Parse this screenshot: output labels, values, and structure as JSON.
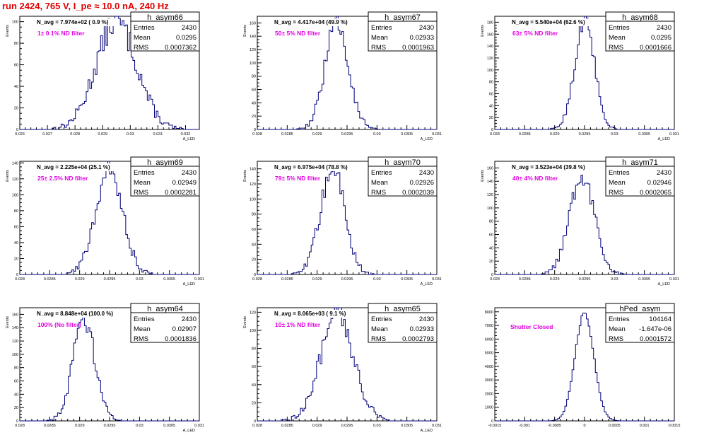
{
  "header": {
    "run_title": "run 2424,   765 V, I_pe ≈ 10.0 nA, 240 Hz"
  },
  "colors": {
    "title": "#e00000",
    "filter_text": "#e000e0",
    "histogram": "#00007a"
  },
  "chart_data": [
    {
      "type": "bar",
      "title": "h_asym66",
      "ylabel": "Events",
      "xlabel": "A_LED",
      "navg": "N_avg = 7.974e+02 ( 0.9 %)",
      "filter": "1± 0.1% ND filter",
      "stats": {
        "Entries": "2430",
        "Mean": "0.0295",
        "RMS": "0.0007362"
      },
      "xlim": [
        0.026,
        0.0325
      ],
      "ylim": [
        0,
        105
      ],
      "xticks": [
        0.026,
        0.027,
        0.028,
        0.029,
        0.03,
        0.031,
        0.032
      ],
      "xticklabels": [
        "0.026",
        "0.027",
        "0.028",
        "0.029",
        "0.03",
        "0.031",
        "0.032"
      ],
      "yticks": [
        0,
        20,
        40,
        60,
        80,
        100
      ],
      "yticklabels": [
        "0",
        "20",
        "40",
        "60",
        "80",
        "100"
      ],
      "mean": 0.0295,
      "rms": 0.0007362,
      "peak": 100,
      "entries": 2430
    },
    {
      "type": "bar",
      "title": "h_asym67",
      "ylabel": "Events",
      "xlabel": "A_LED",
      "navg": "N_avg = 4.417e+04 (49.9 %)",
      "filter": "50± 5% ND filter",
      "stats": {
        "Entries": "2430",
        "Mean": "0.02933",
        "RMS": "0.0001963"
      },
      "xlim": [
        0.028,
        0.031
      ],
      "ylim": [
        0,
        170
      ],
      "xticks": [
        0.028,
        0.0285,
        0.029,
        0.0295,
        0.03,
        0.0305,
        0.031
      ],
      "xticklabels": [
        "0.028",
        "0.0285",
        "0.029",
        "0.0295",
        "0.03",
        "0.0305",
        "0.031"
      ],
      "yticks": [
        0,
        20,
        40,
        60,
        80,
        100,
        120,
        140,
        160
      ],
      "yticklabels": [
        "0",
        "20",
        "40",
        "60",
        "80",
        "100",
        "120",
        "140",
        "160"
      ],
      "mean": 0.02933,
      "rms": 0.0001963,
      "peak": 160,
      "entries": 2430
    },
    {
      "type": "bar",
      "title": "h_asym68",
      "ylabel": "Events",
      "xlabel": "A_LED",
      "navg": "N_avg = 5.540e+04 (62.6 %)",
      "filter": "63± 5% ND filter",
      "stats": {
        "Entries": "2430",
        "Mean": "0.0295",
        "RMS": "0.0001666"
      },
      "xlim": [
        0.028,
        0.031
      ],
      "ylim": [
        0,
        190
      ],
      "xticks": [
        0.028,
        0.0285,
        0.029,
        0.0295,
        0.03,
        0.0305,
        0.031
      ],
      "xticklabels": [
        "0.028",
        "0.0285",
        "0.029",
        "0.0295",
        "0.03",
        "0.0305",
        "0.031"
      ],
      "yticks": [
        0,
        20,
        40,
        60,
        80,
        100,
        120,
        140,
        160,
        180
      ],
      "yticklabels": [
        "0",
        "20",
        "40",
        "60",
        "80",
        "100",
        "120",
        "140",
        "160",
        "180"
      ],
      "mean": 0.0295,
      "rms": 0.0001666,
      "peak": 180,
      "entries": 2430
    },
    {
      "type": "bar",
      "title": "h_asym69",
      "ylabel": "Events",
      "xlabel": "A_LED",
      "navg": "N_avg = 2.225e+04 (25.1 %)",
      "filter": "25± 2.5% ND filter",
      "stats": {
        "Entries": "2430",
        "Mean": "0.02949",
        "RMS": "0.0002281"
      },
      "xlim": [
        0.028,
        0.031
      ],
      "ylim": [
        0,
        142
      ],
      "xticks": [
        0.028,
        0.0285,
        0.029,
        0.0295,
        0.03,
        0.0305,
        0.031
      ],
      "xticklabels": [
        "0.028",
        "0.0285",
        "0.029",
        "0.0295",
        "0.03",
        "0.0305",
        "0.031"
      ],
      "yticks": [
        0,
        20,
        40,
        60,
        80,
        100,
        120,
        140
      ],
      "yticklabels": [
        "0",
        "20",
        "40",
        "60",
        "80",
        "100",
        "120",
        "140"
      ],
      "mean": 0.02949,
      "rms": 0.0002281,
      "peak": 130,
      "entries": 2430
    },
    {
      "type": "bar",
      "title": "h_asym70",
      "ylabel": "Events",
      "xlabel": "A_LED",
      "navg": "N_avg = 6.975e+04 (78.8 %)",
      "filter": "79± 5% ND filter",
      "stats": {
        "Entries": "2430",
        "Mean": "0.02926",
        "RMS": "0.0002039"
      },
      "xlim": [
        0.028,
        0.031
      ],
      "ylim": [
        0,
        150
      ],
      "xticks": [
        0.028,
        0.0285,
        0.029,
        0.0295,
        0.03,
        0.0305,
        0.031
      ],
      "xticklabels": [
        "0.028",
        "0.0285",
        "0.029",
        "0.0295",
        "0.03",
        "0.0305",
        "0.031"
      ],
      "yticks": [
        0,
        20,
        40,
        60,
        80,
        100,
        120,
        140
      ],
      "yticklabels": [
        "0",
        "20",
        "40",
        "60",
        "80",
        "100",
        "120",
        "140"
      ],
      "mean": 0.02926,
      "rms": 0.0002039,
      "peak": 140,
      "entries": 2430
    },
    {
      "type": "bar",
      "title": "h_asym71",
      "ylabel": "Events",
      "xlabel": "A_LED",
      "navg": "N_avg = 3.523e+04 (39.8 %)",
      "filter": "40± 4% ND filter",
      "stats": {
        "Entries": "2430",
        "Mean": "0.02946",
        "RMS": "0.0002065"
      },
      "xlim": [
        0.028,
        0.031
      ],
      "ylim": [
        0,
        170
      ],
      "xticks": [
        0.028,
        0.0285,
        0.029,
        0.0295,
        0.03,
        0.0305,
        0.031
      ],
      "xticklabels": [
        "0.028",
        "0.0285",
        "0.029",
        "0.0295",
        "0.03",
        "0.0305",
        "0.031"
      ],
      "yticks": [
        0,
        20,
        40,
        60,
        80,
        100,
        120,
        140,
        160
      ],
      "yticklabels": [
        "0",
        "20",
        "40",
        "60",
        "80",
        "100",
        "120",
        "140",
        "160"
      ],
      "mean": 0.02946,
      "rms": 0.0002065,
      "peak": 150,
      "entries": 2430
    },
    {
      "type": "bar",
      "title": "h_asym64",
      "ylabel": "Events",
      "xlabel": "A_LED",
      "navg": "N_avg = 8.848e+04 (100.0 %)",
      "filter": "100% (No filter)",
      "stats": {
        "Entries": "2430",
        "Mean": "0.02907",
        "RMS": "0.0001836"
      },
      "xlim": [
        0.028,
        0.031
      ],
      "ylim": [
        0,
        170
      ],
      "xticks": [
        0.028,
        0.0285,
        0.029,
        0.0295,
        0.03,
        0.0305,
        0.031
      ],
      "xticklabels": [
        "0.028",
        "0.0285",
        "0.029",
        "0.0295",
        "0.03",
        "0.0305",
        "0.031"
      ],
      "yticks": [
        0,
        20,
        40,
        60,
        80,
        100,
        120,
        140,
        160
      ],
      "yticklabels": [
        "0",
        "20",
        "40",
        "60",
        "80",
        "100",
        "120",
        "140",
        "160"
      ],
      "mean": 0.02907,
      "rms": 0.0001836,
      "peak": 155,
      "entries": 2430
    },
    {
      "type": "bar",
      "title": "h_asym65",
      "ylabel": "Events",
      "xlabel": "A_LED",
      "navg": "N_avg = 8.065e+03 ( 9.1 %)",
      "filter": "10± 1% ND filter",
      "stats": {
        "Entries": "2430",
        "Mean": "0.02933",
        "RMS": "0.0002793"
      },
      "xlim": [
        0.028,
        0.031
      ],
      "ylim": [
        0,
        125
      ],
      "xticks": [
        0.028,
        0.0285,
        0.029,
        0.0295,
        0.03,
        0.0305,
        0.031
      ],
      "xticklabels": [
        "0.028",
        "0.0285",
        "0.029",
        "0.0295",
        "0.03",
        "0.0305",
        "0.031"
      ],
      "yticks": [
        0,
        20,
        40,
        60,
        80,
        100,
        120
      ],
      "yticklabels": [
        "0",
        "20",
        "40",
        "60",
        "80",
        "100",
        "120"
      ],
      "mean": 0.02933,
      "rms": 0.0002793,
      "peak": 115,
      "entries": 2430
    },
    {
      "type": "bar",
      "title": "hPed_asym",
      "ylabel": "",
      "xlabel": "",
      "navg": "",
      "filter": "Shutter Closed",
      "stats": {
        "Entries": "104164",
        "Mean": "-1.647e-06",
        "RMS": "0.0001572"
      },
      "xlim": [
        -0.0015,
        0.0015
      ],
      "ylim": [
        0,
        8300
      ],
      "xticks": [
        -0.0015,
        -0.001,
        -0.0005,
        0,
        0.0005,
        0.001,
        0.0015
      ],
      "xticklabels": [
        "-0.0015",
        "-0.001",
        "-0.0005",
        "0",
        "0.0005",
        "0.001",
        "0.0015"
      ],
      "yticks": [
        0,
        1000,
        2000,
        3000,
        4000,
        5000,
        6000,
        7000,
        8000
      ],
      "yticklabels": [
        "0",
        "1000",
        "2000",
        "3000",
        "4000",
        "5000",
        "6000",
        "7000",
        "8000"
      ],
      "mean": -1.647e-06,
      "rms": 0.0001572,
      "peak": 7900,
      "entries": 104164
    }
  ]
}
